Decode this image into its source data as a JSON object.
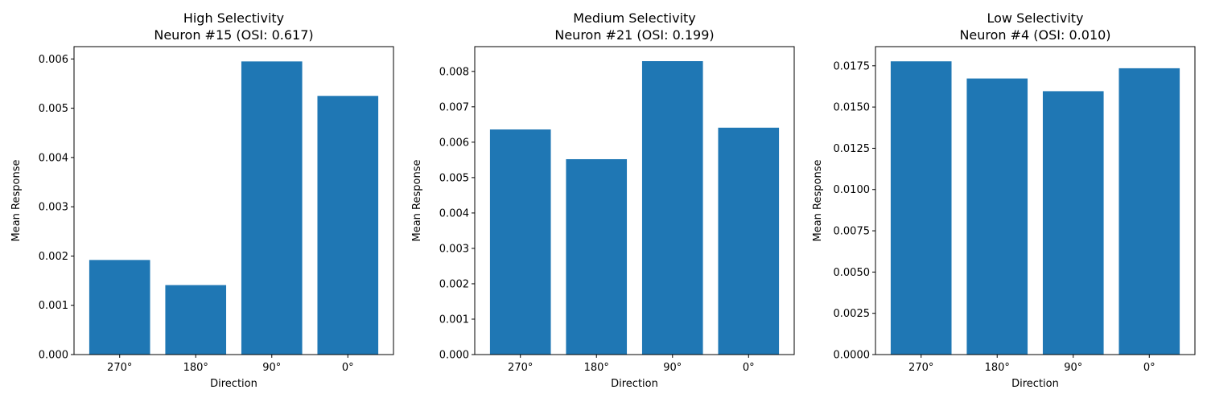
{
  "chart_data": [
    {
      "type": "bar",
      "title": "High Selectivity",
      "subtitle": "Neuron #15 (OSI: 0.617)",
      "xlabel": "Direction",
      "ylabel": "Mean Response",
      "categories": [
        "270°",
        "180°",
        "90°",
        "0°"
      ],
      "values": [
        0.00192,
        0.00141,
        0.00595,
        0.00525
      ],
      "ylim": [
        0,
        0.00625
      ],
      "yticks": [
        0,
        0.001,
        0.002,
        0.003,
        0.004,
        0.005,
        0.006
      ],
      "ytick_labels": [
        "0.000",
        "0.001",
        "0.002",
        "0.003",
        "0.004",
        "0.005",
        "0.006"
      ],
      "bar_color": "#1f77b4",
      "grid": false
    },
    {
      "type": "bar",
      "title": "Medium Selectivity",
      "subtitle": "Neuron #21 (OSI: 0.199)",
      "xlabel": "Direction",
      "ylabel": "Mean Response",
      "categories": [
        "270°",
        "180°",
        "90°",
        "0°"
      ],
      "values": [
        0.00636,
        0.00552,
        0.00829,
        0.00641
      ],
      "ylim": [
        0,
        0.0087
      ],
      "yticks": [
        0,
        0.001,
        0.002,
        0.003,
        0.004,
        0.005,
        0.006,
        0.007,
        0.008
      ],
      "ytick_labels": [
        "0.000",
        "0.001",
        "0.002",
        "0.003",
        "0.004",
        "0.005",
        "0.006",
        "0.007",
        "0.008"
      ],
      "bar_color": "#1f77b4",
      "grid": false
    },
    {
      "type": "bar",
      "title": "Low Selectivity",
      "subtitle": "Neuron #4 (OSI: 0.010)",
      "xlabel": "Direction",
      "ylabel": "Mean Response",
      "categories": [
        "270°",
        "180°",
        "90°",
        "0°"
      ],
      "values": [
        0.01777,
        0.01673,
        0.01596,
        0.01735
      ],
      "ylim": [
        0,
        0.01866
      ],
      "yticks": [
        0,
        0.0025,
        0.005,
        0.0075,
        0.01,
        0.0125,
        0.015,
        0.0175
      ],
      "ytick_labels": [
        "0.0000",
        "0.0025",
        "0.0050",
        "0.0075",
        "0.0100",
        "0.0125",
        "0.0150",
        "0.0175"
      ],
      "bar_color": "#1f77b4",
      "grid": false
    }
  ]
}
